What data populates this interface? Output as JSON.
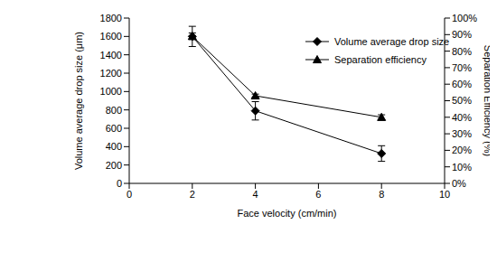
{
  "chart_data": {
    "type": "line",
    "xlabel": "Face velocity (cm/min)",
    "ylabel": "Volume average drop size (μm)",
    "y2label": "Separation Efficiency (%)",
    "x": [
      2,
      4,
      8
    ],
    "xlim": [
      0,
      10
    ],
    "xticks": [
      0,
      2,
      4,
      6,
      8,
      10
    ],
    "ylim": [
      0,
      1800
    ],
    "yticks": [
      0,
      200,
      400,
      600,
      800,
      1000,
      1200,
      1400,
      1600,
      1800
    ],
    "y2lim": [
      0,
      100
    ],
    "y2ticks": [
      {
        "value": 0,
        "label": "0%"
      },
      {
        "value": 10,
        "label": "10%"
      },
      {
        "value": 20,
        "label": "20%"
      },
      {
        "value": 30,
        "label": "30%"
      },
      {
        "value": 40,
        "label": "40%"
      },
      {
        "value": 50,
        "label": "50%"
      },
      {
        "value": 60,
        "label": "60%"
      },
      {
        "value": 70,
        "label": "70%"
      },
      {
        "value": 80,
        "label": "80%"
      },
      {
        "value": 90,
        "label": "90%"
      },
      {
        "value": 100,
        "label": "100%"
      }
    ],
    "grid": false,
    "legend": "upper right",
    "series": [
      {
        "name": "Volume average drop size",
        "color": "#000000",
        "marker": "diamond",
        "values": [
          1600,
          790,
          325
        ],
        "errors": [
          110,
          100,
          85
        ]
      },
      {
        "name": "Separation efficiency",
        "color": "#000000",
        "marker": "triangle",
        "axis": "y2",
        "values": [
          89,
          53,
          40
        ],
        "errors": [
          2,
          1,
          1.5
        ]
      }
    ]
  }
}
